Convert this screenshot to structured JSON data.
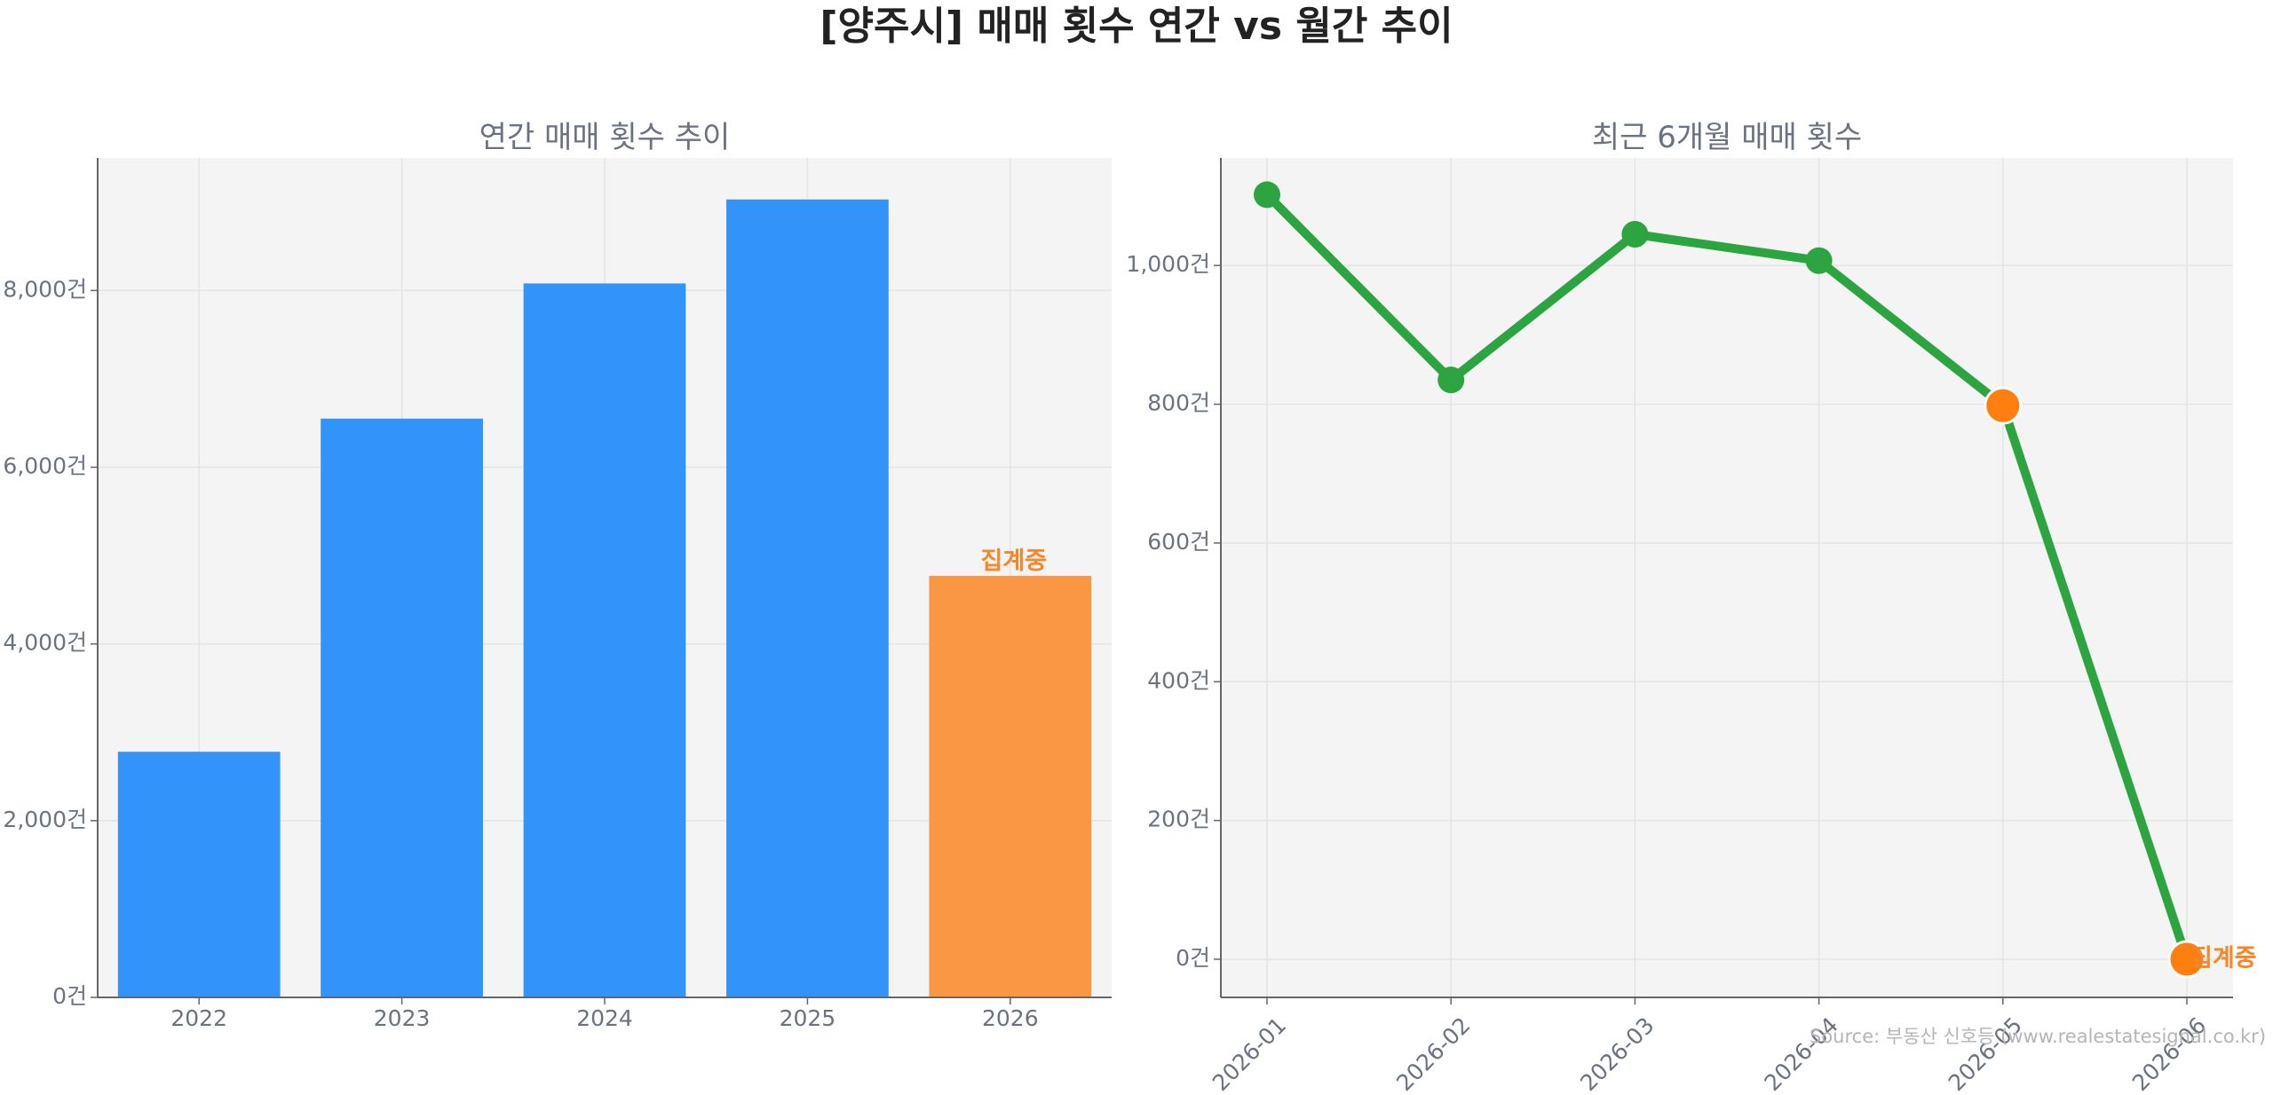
{
  "title": "[양주시] 매매 횟수 연간 vs 월간 추이",
  "source": "Source: 부동산 신호등 (www.realestatesignal.co.kr)",
  "colors": {
    "bar": "#3293fb",
    "bar_incomplete": "#fa9742",
    "line": "#2ca541",
    "point": "#2ca541",
    "point_highlight": "#fe7f0e",
    "annotation": "#f5862a",
    "plot_bg": "#f4f4f4",
    "grid": "#e4e4e4",
    "axis": "#666666",
    "tick_text": "#6b7280"
  },
  "chart_data": [
    {
      "type": "bar",
      "title": "연간 매매 횟수 추이",
      "categories": [
        "2022",
        "2023",
        "2024",
        "2025",
        "2026"
      ],
      "values": [
        2780,
        6550,
        8080,
        9030,
        4770
      ],
      "incomplete": [
        false,
        false,
        false,
        false,
        true
      ],
      "annotation": {
        "category": "2026",
        "text": "집계중"
      },
      "ylim": [
        0,
        9500
      ],
      "yticks": [
        0,
        2000,
        4000,
        6000,
        8000
      ],
      "ytick_labels": [
        "0건",
        "2,000건",
        "4,000건",
        "6,000건",
        "8,000건"
      ],
      "grid": true
    },
    {
      "type": "line",
      "title": "최근 6개월 매매 횟수",
      "x": [
        "2026-01",
        "2026-02",
        "2026-03",
        "2026-04",
        "2026-05",
        "2026-06"
      ],
      "values": [
        1102,
        835,
        1045,
        1007,
        798,
        0
      ],
      "highlight": [
        false,
        false,
        false,
        false,
        true,
        true
      ],
      "annotation": {
        "x": "2026-06",
        "text": "집계중"
      },
      "ylim": [
        -55,
        1155
      ],
      "yticks": [
        0,
        200,
        400,
        600,
        800,
        1000
      ],
      "ytick_labels": [
        "0건",
        "200건",
        "400건",
        "600건",
        "800건",
        "1,000건"
      ],
      "grid": true
    }
  ]
}
